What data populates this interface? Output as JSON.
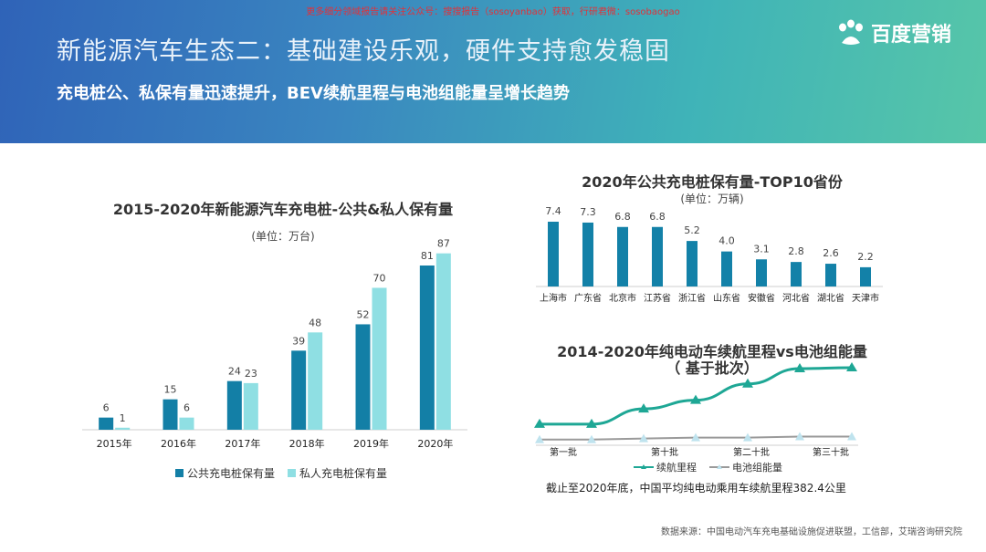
{
  "header": {
    "watermark": "更多细分领域报告请关注公众号：搜搜报告（sosoyanbao）获取，行研君微：sosobaogao",
    "title": "新能源汽车生态二：基础建设乐观，硬件支持愈发稳固",
    "subtitle": "充电桩公、私保有量迅速提升，BEV续航里程与电池组能量呈增长趋势",
    "logo_text": "百度营销"
  },
  "colors": {
    "dark_teal": "#137fa6",
    "light_teal": "#8fdfe3",
    "bar_blue": "#1381a8",
    "line_green": "#1ea795",
    "line_gray": "#9a9a9a"
  },
  "chart_data": [
    {
      "type": "bar",
      "title": "2015-2020年新能源汽车充电桩-公共&私人保有量",
      "unit": "(单位：万台)",
      "categories": [
        "2015年",
        "2016年",
        "2017年",
        "2018年",
        "2019年",
        "2020年"
      ],
      "series": [
        {
          "name": "公共充电桩保有量",
          "values": [
            6,
            15,
            24,
            39,
            52,
            81
          ]
        },
        {
          "name": "私人充电桩保有量",
          "values": [
            1,
            6,
            23,
            48,
            70,
            87
          ]
        }
      ],
      "ylim": [
        0,
        90
      ],
      "legend": "bottom"
    },
    {
      "type": "bar",
      "title": "2020年公共充电桩保有量-TOP10省份",
      "unit": "(单位：万辆)",
      "categories": [
        "上海市",
        "广东省",
        "北京市",
        "江苏省",
        "浙江省",
        "山东省",
        "安徽省",
        "河北省",
        "湖北省",
        "天津市"
      ],
      "values": [
        7.4,
        7.3,
        6.8,
        6.8,
        5.2,
        4.0,
        3.1,
        2.8,
        2.6,
        2.2
      ],
      "value_labels": [
        "7.4",
        "7.3",
        "6.8",
        "6.8",
        "5.2",
        "4.0",
        "3.1",
        "2.8",
        "2.6",
        "2.2"
      ],
      "ylim": [
        0,
        8
      ]
    },
    {
      "type": "line",
      "title": "2014-2020年纯电动车续航里程vs电池组能量",
      "subtitle": "（ 基于批次）",
      "x_tick_labels": [
        "第一批",
        "第十批",
        "第二十批",
        "第三十批"
      ],
      "series": [
        {
          "name": "续航里程",
          "values": [
            22,
            22,
            38,
            47,
            64,
            80,
            81
          ]
        },
        {
          "name": "电池组能量",
          "values": [
            6,
            6,
            7,
            8,
            8,
            9,
            9
          ]
        }
      ],
      "ylim": [
        0,
        100
      ],
      "legend": "bottom"
    }
  ],
  "note": "截止至2020年底，中国平均纯电动乘用车续航里程382.4公里",
  "source": "数据来源：中国电动汽车充电基础设施促进联盟，工信部，艾瑞咨询研究院"
}
